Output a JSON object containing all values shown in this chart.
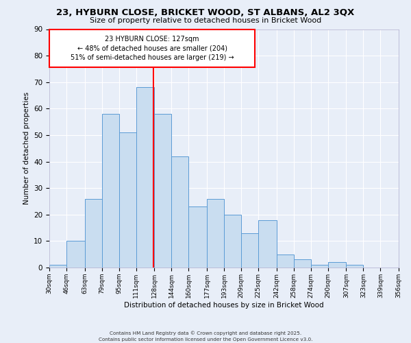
{
  "title": "23, HYBURN CLOSE, BRICKET WOOD, ST ALBANS, AL2 3QX",
  "subtitle": "Size of property relative to detached houses in Bricket Wood",
  "xlabel": "Distribution of detached houses by size in Bricket Wood",
  "ylabel": "Number of detached properties",
  "bar_color": "#c9ddf0",
  "bar_edge_color": "#5b9bd5",
  "bg_color": "#e8eef8",
  "grid_color": "#ffffff",
  "bin_edges": [
    30,
    46,
    63,
    79,
    95,
    111,
    128,
    144,
    160,
    177,
    193,
    209,
    225,
    242,
    258,
    274,
    290,
    307,
    323,
    339,
    356
  ],
  "bar_heights": [
    1,
    10,
    26,
    58,
    51,
    68,
    58,
    42,
    23,
    26,
    20,
    13,
    18,
    5,
    3,
    1,
    2,
    1,
    0,
    0
  ],
  "red_line_x": 127,
  "annotation_title": "23 HYBURN CLOSE: 127sqm",
  "annotation_line1": "← 48% of detached houses are smaller (204)",
  "annotation_line2": "51% of semi-detached houses are larger (219) →",
  "ylim": [
    0,
    90
  ],
  "yticks": [
    0,
    10,
    20,
    30,
    40,
    50,
    60,
    70,
    80,
    90
  ],
  "footer1": "Contains HM Land Registry data © Crown copyright and database right 2025.",
  "footer2": "Contains public sector information licensed under the Open Government Licence v3.0."
}
